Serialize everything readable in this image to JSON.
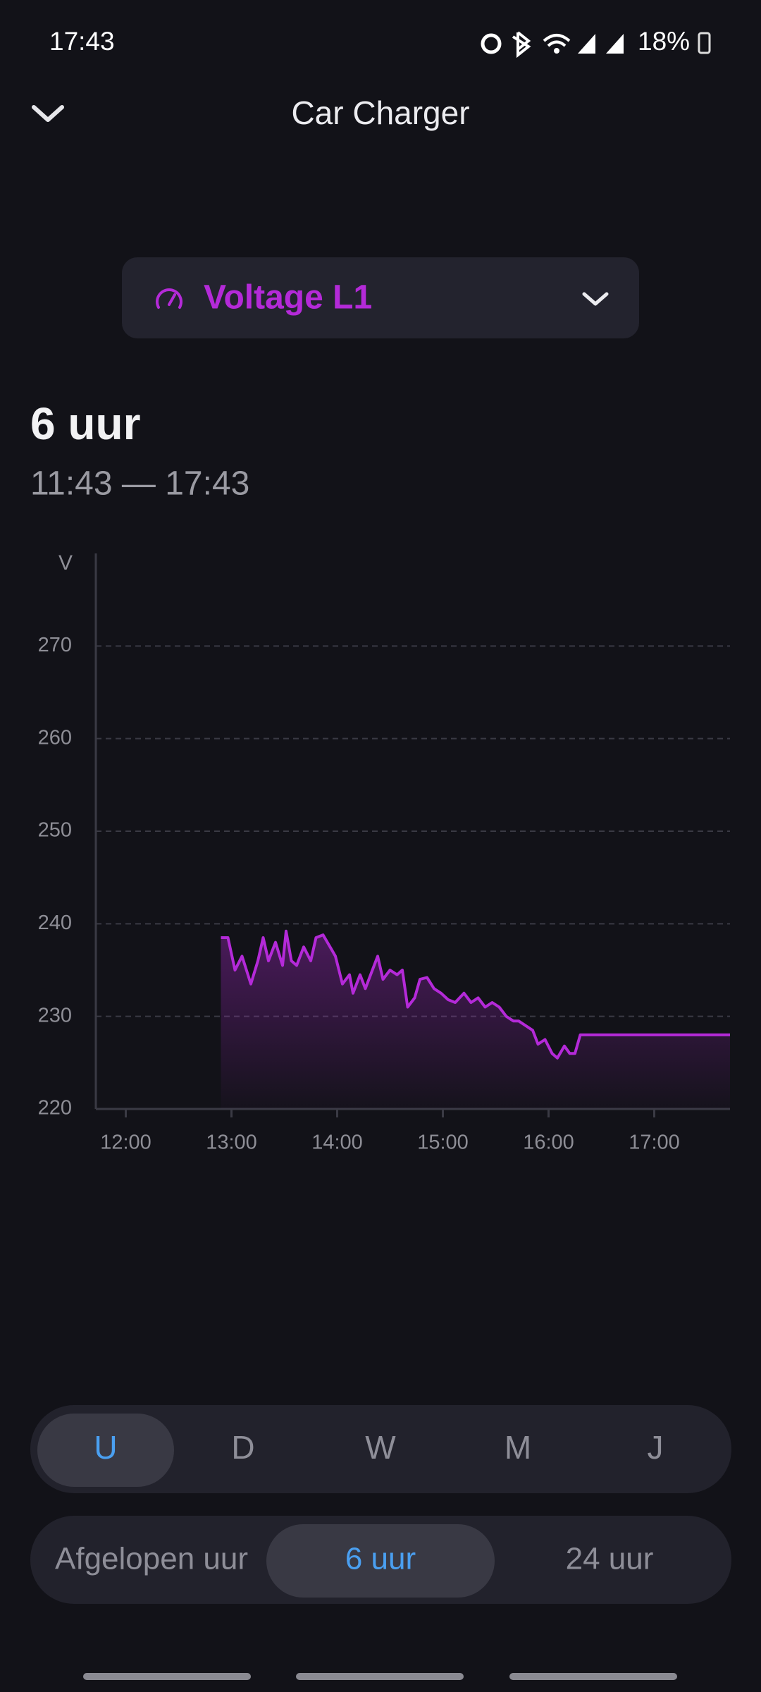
{
  "status_bar": {
    "time": "17:43",
    "battery": "18%"
  },
  "header": {
    "title": "Car Charger"
  },
  "selector": {
    "label": "Voltage L1"
  },
  "summary": {
    "range_title": "6 uur",
    "range": "11:43 — 17:43"
  },
  "chart_data": {
    "type": "area",
    "y_label": "V",
    "color": "#b42ad8",
    "grid": true,
    "x": [
      "12:54",
      "12:58",
      "13:02",
      "13:06",
      "13:11",
      "13:15",
      "13:18",
      "13:21",
      "13:25",
      "13:29",
      "13:31",
      "13:34",
      "13:37",
      "13:41",
      "13:45",
      "13:48",
      "13:52",
      "13:56",
      "13:59",
      "14:03",
      "14:07",
      "14:09",
      "14:13",
      "14:16",
      "14:20",
      "14:23",
      "14:26",
      "14:30",
      "14:34",
      "14:37",
      "14:40",
      "14:44",
      "14:47",
      "14:51",
      "14:55",
      "14:59",
      "15:03",
      "15:07",
      "15:12",
      "15:16",
      "15:20",
      "15:24",
      "15:28",
      "15:32",
      "15:36",
      "15:40",
      "15:43",
      "15:47",
      "15:51",
      "15:54",
      "15:58",
      "16:02",
      "16:05",
      "16:09",
      "16:12",
      "16:15",
      "16:18",
      "17:43"
    ],
    "values": [
      238.5,
      238.5,
      235,
      236.5,
      233.5,
      236,
      238.5,
      236,
      238,
      235.5,
      239.2,
      236,
      235.5,
      237.5,
      236,
      238.5,
      238.8,
      237.5,
      236.5,
      233.5,
      234.5,
      232.5,
      234.5,
      233,
      235,
      236.5,
      234,
      235,
      234.5,
      235,
      231,
      232,
      234,
      234.2,
      233,
      232.5,
      231.8,
      231.5,
      232.5,
      231.5,
      232,
      231,
      231.5,
      231,
      230,
      229.5,
      229.5,
      229,
      228.5,
      227,
      227.5,
      226,
      225.5,
      226.8,
      226,
      226,
      228,
      228
    ],
    "xlim": [
      "11:43",
      "17:43"
    ],
    "xticks": [
      "12:00",
      "13:00",
      "14:00",
      "15:00",
      "16:00",
      "17:00"
    ],
    "ylim": [
      220,
      280
    ],
    "yticks": [
      220,
      230,
      240,
      250,
      260,
      270
    ]
  },
  "period_tabs": {
    "items": [
      "U",
      "D",
      "W",
      "M",
      "J"
    ],
    "selected": 0
  },
  "range_tabs": {
    "items": [
      "Afgelopen uur",
      "6 uur",
      "24 uur"
    ],
    "selected": 1
  }
}
